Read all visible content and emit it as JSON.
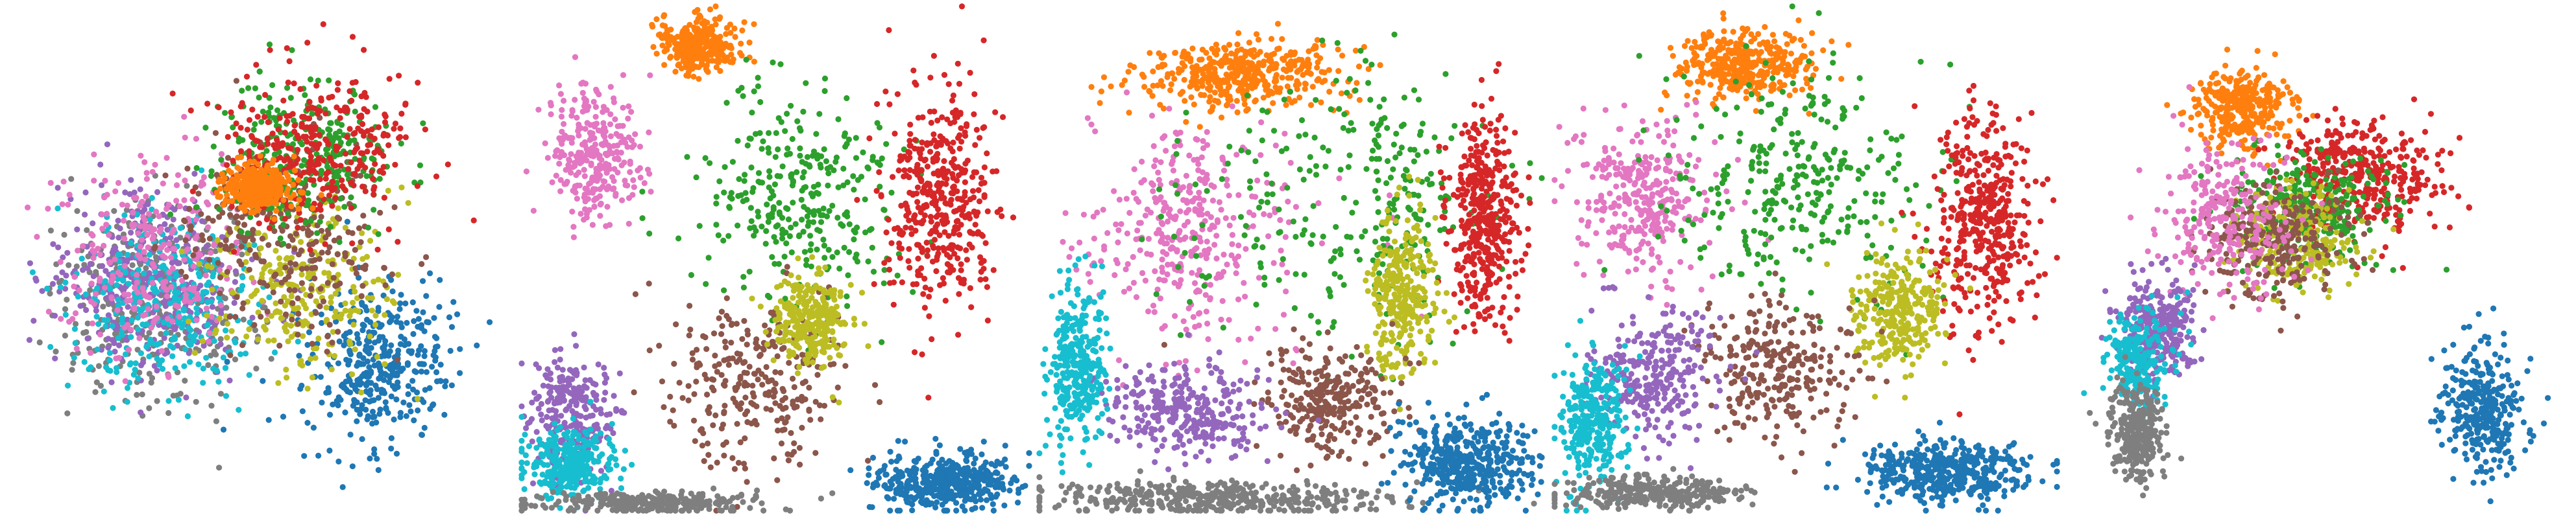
{
  "figure": {
    "title": "",
    "panel_count": 5
  },
  "palette": {
    "blue": "#1f77b4",
    "orange": "#ff7f0e",
    "green": "#2ca02c",
    "red": "#d62728",
    "purple": "#9467bd",
    "brown": "#8c564b",
    "pink": "#e377c2",
    "gray": "#7f7f7f",
    "olive": "#bcbd22",
    "cyan": "#17becf"
  },
  "chart_data": [
    {
      "type": "scatter",
      "title": "",
      "xlabel": "",
      "ylabel": "",
      "axes_visible": false,
      "grid": false,
      "legend": "none",
      "xlim": [
        0,
        1
      ],
      "ylim": [
        0,
        1
      ],
      "shape": "circle",
      "clusters": [
        {
          "color": "gray",
          "center": [
            0.3,
            0.4
          ],
          "spread": [
            0.18,
            0.18
          ],
          "count": 360
        },
        {
          "color": "purple",
          "center": [
            0.28,
            0.45
          ],
          "spread": [
            0.17,
            0.16
          ],
          "count": 360
        },
        {
          "color": "cyan",
          "center": [
            0.32,
            0.42
          ],
          "spread": [
            0.17,
            0.15
          ],
          "count": 340
        },
        {
          "color": "pink",
          "center": [
            0.3,
            0.5
          ],
          "spread": [
            0.18,
            0.18
          ],
          "count": 260
        },
        {
          "color": "blue",
          "center": [
            0.75,
            0.28
          ],
          "spread": [
            0.14,
            0.16
          ],
          "count": 380
        },
        {
          "color": "olive",
          "center": [
            0.6,
            0.45
          ],
          "spread": [
            0.16,
            0.14
          ],
          "count": 280
        },
        {
          "color": "brown",
          "center": [
            0.55,
            0.55
          ],
          "spread": [
            0.18,
            0.18
          ],
          "count": 300
        },
        {
          "color": "green",
          "center": [
            0.6,
            0.7
          ],
          "spread": [
            0.16,
            0.14
          ],
          "count": 300
        },
        {
          "color": "red",
          "center": [
            0.62,
            0.72
          ],
          "spread": [
            0.17,
            0.14
          ],
          "count": 320
        },
        {
          "color": "orange",
          "center": [
            0.5,
            0.64
          ],
          "spread": [
            0.06,
            0.04
          ],
          "count": 340
        }
      ]
    },
    {
      "type": "scatter",
      "title": "",
      "xlabel": "",
      "ylabel": "",
      "axes_visible": false,
      "grid": false,
      "legend": "none",
      "xlim": [
        0,
        1
      ],
      "ylim": [
        0,
        1
      ],
      "shape": "square",
      "clusters": [
        {
          "color": "orange",
          "center": [
            0.35,
            0.92
          ],
          "spread": [
            0.07,
            0.05
          ],
          "count": 300
        },
        {
          "color": "pink",
          "center": [
            0.15,
            0.7
          ],
          "spread": [
            0.08,
            0.12
          ],
          "count": 300
        },
        {
          "color": "green",
          "center": [
            0.55,
            0.62
          ],
          "spread": [
            0.18,
            0.2
          ],
          "count": 320
        },
        {
          "color": "red",
          "center": [
            0.82,
            0.62
          ],
          "spread": [
            0.1,
            0.2
          ],
          "count": 420
        },
        {
          "color": "brown",
          "center": [
            0.45,
            0.25
          ],
          "spread": [
            0.15,
            0.15
          ],
          "count": 280
        },
        {
          "color": "olive",
          "center": [
            0.57,
            0.38
          ],
          "spread": [
            0.07,
            0.08
          ],
          "count": 280
        },
        {
          "color": "purple",
          "center": [
            0.1,
            0.2
          ],
          "spread": [
            0.08,
            0.12
          ],
          "count": 260
        },
        {
          "color": "cyan",
          "center": [
            0.1,
            0.1
          ],
          "spread": [
            0.08,
            0.06
          ],
          "count": 300
        },
        {
          "color": "gray",
          "center": [
            0.25,
            0.02
          ],
          "spread": [
            0.2,
            0.02
          ],
          "count": 300
        },
        {
          "color": "blue",
          "center": [
            0.82,
            0.06
          ],
          "spread": [
            0.13,
            0.05
          ],
          "count": 420
        }
      ]
    },
    {
      "type": "scatter",
      "title": "",
      "xlabel": "",
      "ylabel": "",
      "axes_visible": false,
      "grid": false,
      "legend": "none",
      "xlim": [
        0,
        1
      ],
      "ylim": [
        0,
        1
      ],
      "shape": "ring",
      "clusters": [
        {
          "color": "orange",
          "center": [
            0.4,
            0.86
          ],
          "spread": [
            0.18,
            0.06
          ],
          "count": 420
        },
        {
          "color": "pink",
          "center": [
            0.32,
            0.55
          ],
          "spread": [
            0.18,
            0.18
          ],
          "count": 380
        },
        {
          "color": "green",
          "center": [
            0.6,
            0.6
          ],
          "spread": [
            0.25,
            0.22
          ],
          "count": 300
        },
        {
          "color": "red",
          "center": [
            0.88,
            0.58
          ],
          "spread": [
            0.06,
            0.18
          ],
          "count": 420
        },
        {
          "color": "olive",
          "center": [
            0.72,
            0.42
          ],
          "spread": [
            0.06,
            0.14
          ],
          "count": 300
        },
        {
          "color": "brown",
          "center": [
            0.58,
            0.22
          ],
          "spread": [
            0.12,
            0.1
          ],
          "count": 280
        },
        {
          "color": "purple",
          "center": [
            0.3,
            0.2
          ],
          "spread": [
            0.14,
            0.08
          ],
          "count": 300
        },
        {
          "color": "cyan",
          "center": [
            0.08,
            0.28
          ],
          "spread": [
            0.05,
            0.15
          ],
          "count": 320
        },
        {
          "color": "gray",
          "center": [
            0.35,
            0.03
          ],
          "spread": [
            0.3,
            0.03
          ],
          "count": 420
        },
        {
          "color": "blue",
          "center": [
            0.85,
            0.1
          ],
          "spread": [
            0.12,
            0.08
          ],
          "count": 420
        }
      ]
    },
    {
      "type": "scatter",
      "title": "",
      "xlabel": "",
      "ylabel": "",
      "axes_visible": false,
      "grid": false,
      "legend": "none",
      "xlim": [
        0,
        1
      ],
      "ylim": [
        0,
        1
      ],
      "shape": "square",
      "clusters": [
        {
          "color": "orange",
          "center": [
            0.38,
            0.88
          ],
          "spread": [
            0.12,
            0.06
          ],
          "count": 380
        },
        {
          "color": "pink",
          "center": [
            0.18,
            0.62
          ],
          "spread": [
            0.12,
            0.14
          ],
          "count": 320
        },
        {
          "color": "green",
          "center": [
            0.5,
            0.65
          ],
          "spread": [
            0.25,
            0.22
          ],
          "count": 320
        },
        {
          "color": "red",
          "center": [
            0.85,
            0.58
          ],
          "spread": [
            0.09,
            0.18
          ],
          "count": 420
        },
        {
          "color": "olive",
          "center": [
            0.68,
            0.4
          ],
          "spread": [
            0.08,
            0.1
          ],
          "count": 300
        },
        {
          "color": "brown",
          "center": [
            0.45,
            0.28
          ],
          "spread": [
            0.14,
            0.12
          ],
          "count": 280
        },
        {
          "color": "purple",
          "center": [
            0.2,
            0.28
          ],
          "spread": [
            0.12,
            0.12
          ],
          "count": 280
        },
        {
          "color": "cyan",
          "center": [
            0.08,
            0.18
          ],
          "spread": [
            0.06,
            0.12
          ],
          "count": 300
        },
        {
          "color": "gray",
          "center": [
            0.2,
            0.04
          ],
          "spread": [
            0.16,
            0.03
          ],
          "count": 300
        },
        {
          "color": "blue",
          "center": [
            0.78,
            0.08
          ],
          "spread": [
            0.15,
            0.06
          ],
          "count": 420
        }
      ]
    },
    {
      "type": "scatter",
      "title": "",
      "xlabel": "",
      "ylabel": "",
      "axes_visible": false,
      "grid": false,
      "legend": "none",
      "xlim": [
        0,
        1
      ],
      "ylim": [
        0,
        1
      ],
      "shape": "free",
      "clusters": [
        {
          "color": "orange",
          "center": [
            0.34,
            0.8
          ],
          "spread": [
            0.09,
            0.07
          ],
          "count": 340
        },
        {
          "color": "red",
          "center": [
            0.58,
            0.66
          ],
          "spread": [
            0.14,
            0.11
          ],
          "count": 380
        },
        {
          "color": "green",
          "center": [
            0.46,
            0.6
          ],
          "spread": [
            0.14,
            0.1
          ],
          "count": 320
        },
        {
          "color": "olive",
          "center": [
            0.44,
            0.54
          ],
          "spread": [
            0.11,
            0.09
          ],
          "count": 260
        },
        {
          "color": "brown",
          "center": [
            0.4,
            0.54
          ],
          "spread": [
            0.13,
            0.1
          ],
          "count": 260
        },
        {
          "color": "pink",
          "center": [
            0.3,
            0.58
          ],
          "spread": [
            0.12,
            0.14
          ],
          "count": 260
        },
        {
          "color": "purple",
          "center": [
            0.17,
            0.36
          ],
          "spread": [
            0.07,
            0.09
          ],
          "count": 300
        },
        {
          "color": "cyan",
          "center": [
            0.13,
            0.3
          ],
          "spread": [
            0.06,
            0.1
          ],
          "count": 240
        },
        {
          "color": "gray",
          "center": [
            0.13,
            0.15
          ],
          "spread": [
            0.05,
            0.09
          ],
          "count": 300
        },
        {
          "color": "blue",
          "center": [
            0.82,
            0.2
          ],
          "spread": [
            0.08,
            0.11
          ],
          "count": 320
        }
      ]
    }
  ]
}
